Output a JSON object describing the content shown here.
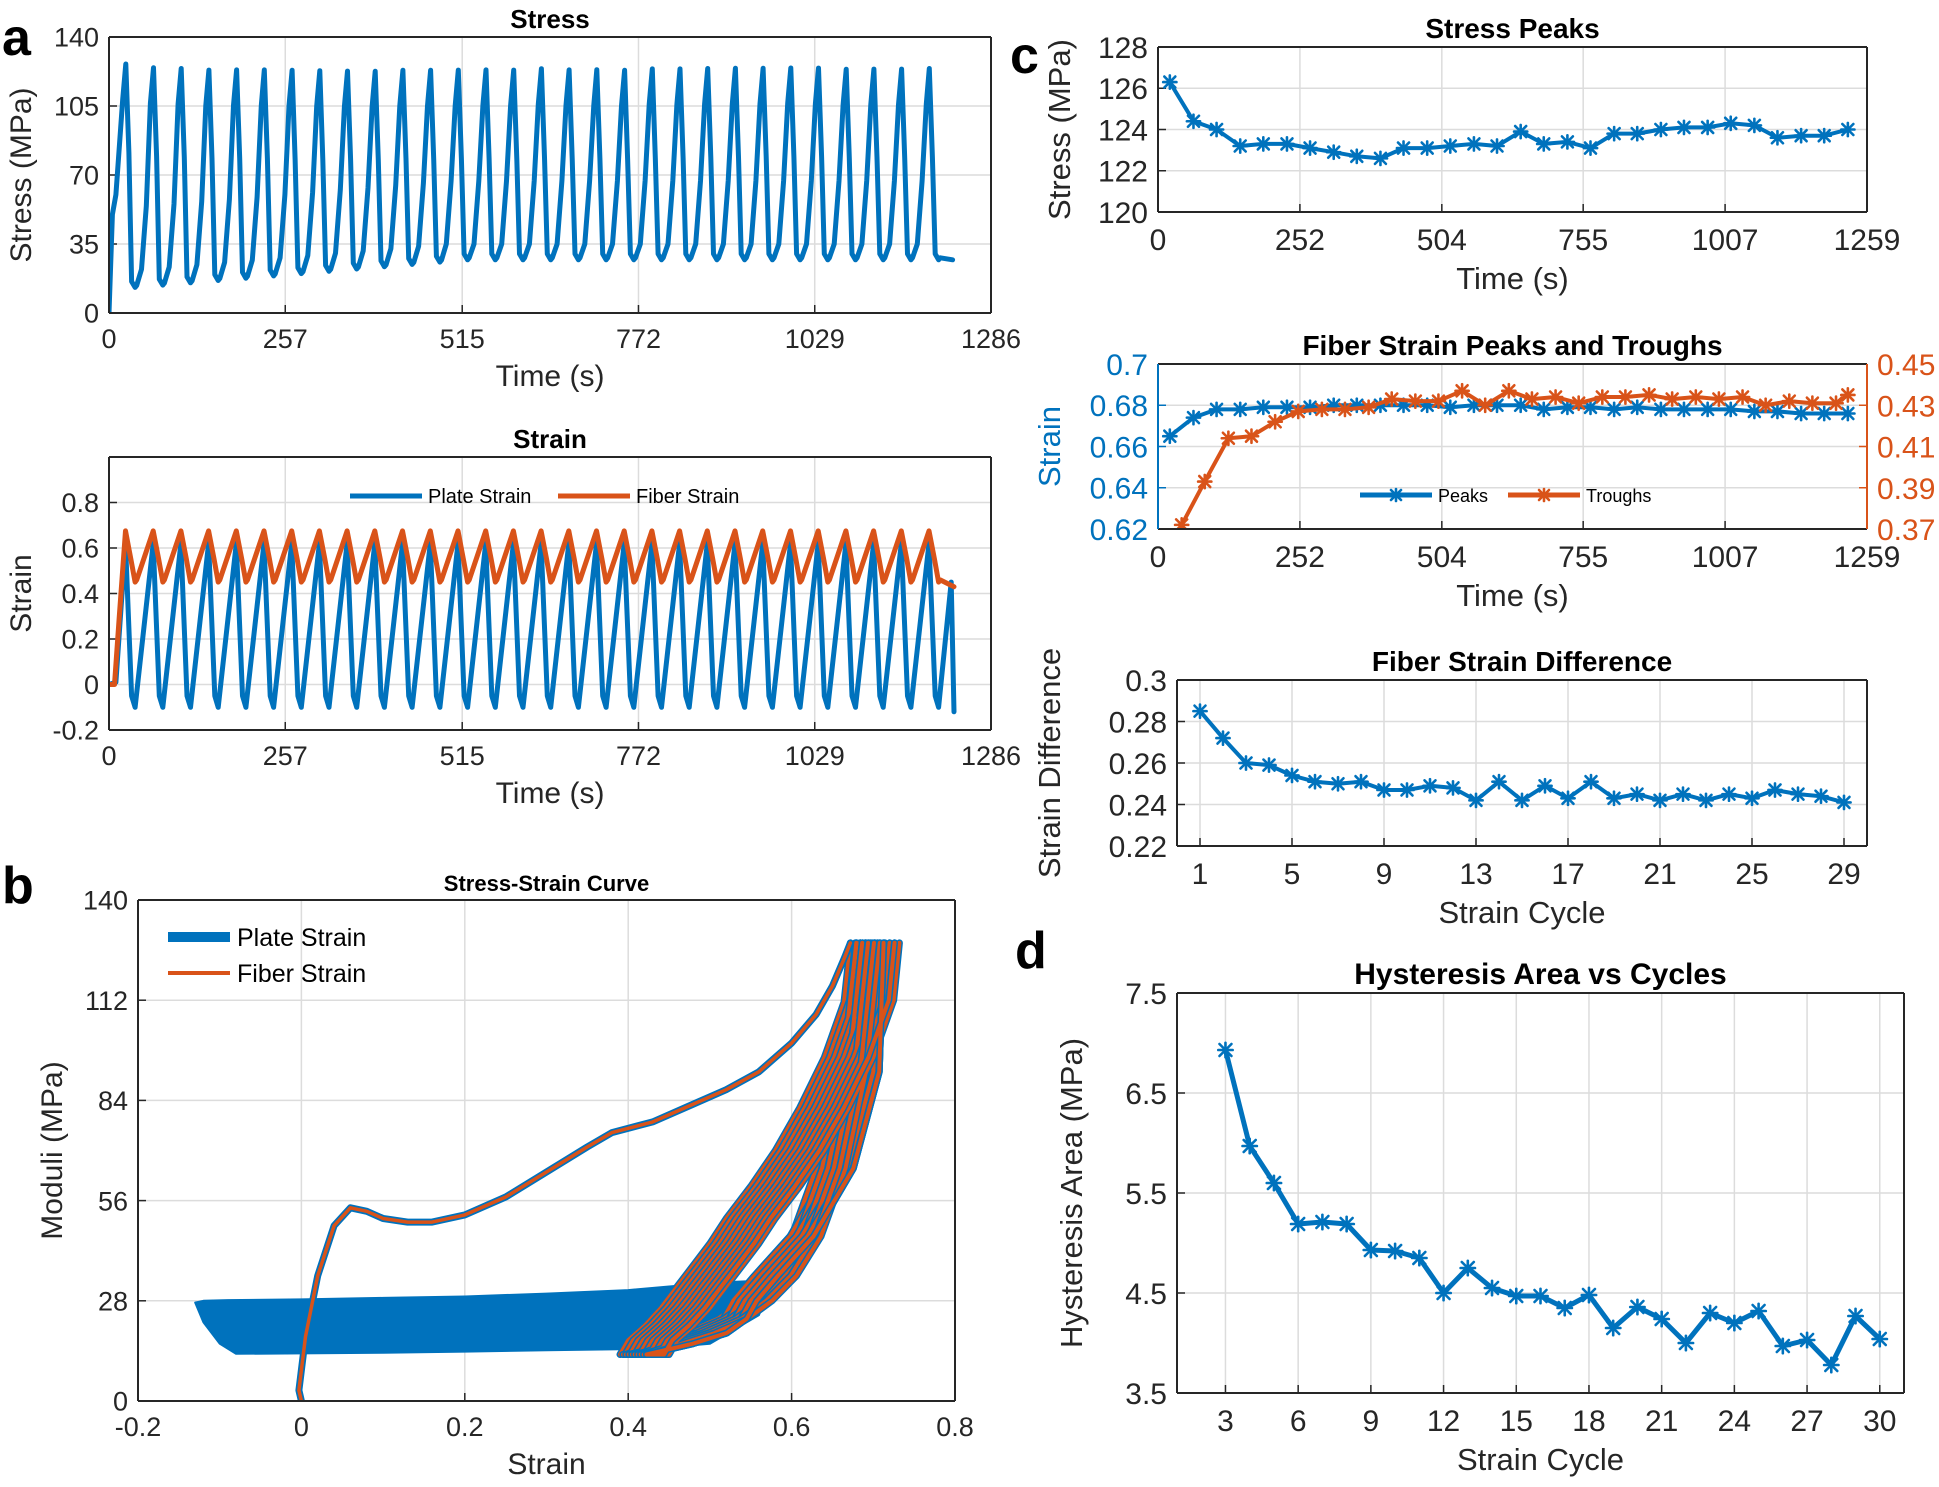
{
  "panel_letters": {
    "a": "a",
    "b": "b",
    "c": "c",
    "d": "d"
  },
  "colors": {
    "blue": "#0072BD",
    "orange": "#D95319",
    "grid": "#dcdcdc",
    "axis": "#262626"
  },
  "chart_data": [
    {
      "id": "stress",
      "type": "line",
      "title": "Stress",
      "xlabel": "Time (s)",
      "ylabel": "Stress (MPa)",
      "xlim": [
        0,
        1286
      ],
      "ylim": [
        0,
        140
      ],
      "xticks": [
        0,
        257,
        515,
        772,
        1029,
        1286
      ],
      "yticks": [
        0,
        35,
        70,
        105,
        140
      ],
      "grid": true,
      "cycle": {
        "period_s": 40.4,
        "cycles": 30,
        "peak_values": [
          126.3,
          124.4,
          124.0,
          123.2,
          123.3,
          123.3,
          123.1,
          122.9,
          122.7,
          122.6,
          123.1,
          123.1,
          123.2,
          123.3,
          123.2,
          123.9,
          123.3,
          123.4,
          123.1,
          123.8,
          123.8,
          124.0,
          124.1,
          124.1,
          124.3,
          124.2,
          123.6,
          123.7,
          123.7,
          124.0
        ],
        "trough_first": 13,
        "trough_last": 27,
        "end_time": 1230,
        "end_value": 27
      },
      "series": [
        {
          "name": "",
          "color": "#0072BD"
        }
      ]
    },
    {
      "id": "strain",
      "type": "line",
      "title": "Strain",
      "xlabel": "Time (s)",
      "ylabel": "Strain",
      "xlim": [
        0,
        1286
      ],
      "ylim": [
        -0.2,
        1.0
      ],
      "xticks": [
        0,
        257,
        515,
        772,
        1029,
        1286
      ],
      "xtick_labels": [
        "0",
        "257",
        "515",
        "772",
        "1029",
        "1286"
      ],
      "yticks": [
        -0.2,
        0,
        0.2,
        0.4,
        0.6,
        0.8
      ],
      "ytick_labels": [
        "-0.2",
        "0",
        "0.2",
        "0.4",
        "0.6",
        "0.8"
      ],
      "grid": true,
      "legend": "top-center",
      "series": [
        {
          "name": "Plate Strain",
          "color": "#0072BD",
          "peak": 0.62,
          "trough": -0.1,
          "end_value": -0.12
        },
        {
          "name": "Fiber Strain",
          "color": "#D95319",
          "peak": 0.675,
          "trough": 0.45,
          "end_value": 0.43
        }
      ]
    },
    {
      "id": "stress-strain",
      "type": "line",
      "title": "Stress-Strain Curve",
      "xlabel": "Strain",
      "ylabel": "Moduli (MPa)",
      "xlim": [
        -0.2,
        0.8
      ],
      "ylim": [
        0,
        140
      ],
      "xticks": [
        -0.2,
        0,
        0.2,
        0.4,
        0.6,
        0.8
      ],
      "xtick_labels": [
        "-0.2",
        "0",
        "0.2",
        "0.4",
        "0.6",
        "0.8"
      ],
      "yticks": [
        0,
        28,
        56,
        84,
        112,
        140
      ],
      "ytick_labels": [
        "0",
        "28",
        "56",
        "84",
        "112",
        "140"
      ],
      "grid": true,
      "legend": "top-left",
      "series": [
        {
          "name": "Plate Strain",
          "color": "#0072BD",
          "band_x": [
            -0.13,
            -0.12,
            -0.09,
            0.0,
            0.1,
            0.2,
            0.3,
            0.4,
            0.45,
            0.5,
            0.55,
            0.58,
            0.56,
            0.5,
            0.45,
            0.4,
            0.3,
            0.2,
            0.1,
            0.0,
            -0.08,
            -0.1,
            -0.12
          ],
          "band_y": [
            27.5,
            28.0,
            28.2,
            28.4,
            28.8,
            29.2,
            30.0,
            31.0,
            32.0,
            33.0,
            33.5,
            35.0,
            24.0,
            16.0,
            15.0,
            14.5,
            14.2,
            13.8,
            13.5,
            13.3,
            13.2,
            16.0,
            22.0
          ]
        },
        {
          "name": "Fiber Strain",
          "color": "#D95319",
          "first_x": [
            0.0,
            -0.003,
            0.005,
            0.02,
            0.04,
            0.06,
            0.08,
            0.1,
            0.13,
            0.16,
            0.2,
            0.25,
            0.3,
            0.35,
            0.38,
            0.43,
            0.48,
            0.52,
            0.56,
            0.6,
            0.63,
            0.65,
            0.665,
            0.672
          ],
          "first_y": [
            0.0,
            3.0,
            18.0,
            35.0,
            49.0,
            54.0,
            53.0,
            51.0,
            50.0,
            50.0,
            52.0,
            57.0,
            64.0,
            71.0,
            75.0,
            78.0,
            83.0,
            87.0,
            92.0,
            100.0,
            108.0,
            116.0,
            124.0,
            128.0
          ],
          "unload_x": [
            0.672,
            0.665,
            0.64,
            0.61,
            0.58,
            0.55,
            0.52,
            0.5,
            0.48,
            0.46,
            0.44,
            0.42,
            0.4,
            0.39
          ],
          "unload_y": [
            128.0,
            112.0,
            96.0,
            82.0,
            70.0,
            60.0,
            51.0,
            44.0,
            38.0,
            32.0,
            26.0,
            21.0,
            17.0,
            13.0
          ],
          "reload_x": [
            0.39,
            0.43,
            0.47,
            0.51,
            0.54,
            0.57,
            0.6,
            0.63,
            0.655,
            0.672
          ],
          "reload_y": [
            13.0,
            16.0,
            19.0,
            23.0,
            28.0,
            35.0,
            46.0,
            65.0,
            92.0,
            128.0
          ]
        }
      ]
    },
    {
      "id": "stress-peaks",
      "type": "line",
      "title": "Stress Peaks",
      "xlabel": "Time (s)",
      "ylabel": "Stress (MPa)",
      "xlim": [
        0,
        1259
      ],
      "ylim": [
        120,
        128
      ],
      "xticks": [
        0,
        252,
        504,
        755,
        1007,
        1259
      ],
      "yticks": [
        120,
        122,
        124,
        126,
        128
      ],
      "grid": true,
      "x": [
        21,
        63,
        104,
        146,
        187,
        229,
        270,
        312,
        353,
        395,
        436,
        478,
        519,
        561,
        602,
        644,
        685,
        727,
        768,
        810,
        851,
        893,
        934,
        976,
        1017,
        1059,
        1100,
        1142,
        1183,
        1225
      ],
      "series": [
        {
          "name": "",
          "color": "#0072BD",
          "values": [
            126.3,
            124.4,
            124.0,
            123.2,
            123.3,
            123.3,
            123.1,
            122.9,
            122.7,
            122.6,
            123.1,
            123.1,
            123.2,
            123.3,
            123.2,
            123.9,
            123.3,
            123.4,
            123.1,
            123.8,
            123.8,
            124.0,
            124.1,
            124.1,
            124.3,
            124.2,
            123.6,
            123.7,
            123.7,
            124.0
          ]
        }
      ]
    },
    {
      "id": "fiber-peaks-troughs",
      "type": "line",
      "title": "Fiber Strain Peaks and Troughs",
      "xlabel": "Time (s)",
      "ylabel": "Strain",
      "xlim": [
        0,
        1259
      ],
      "ylim": [
        0.62,
        0.7
      ],
      "y2lim": [
        0.37,
        0.45
      ],
      "xticks": [
        0,
        252,
        504,
        755,
        1007,
        1259
      ],
      "yticks": [
        0.62,
        0.64,
        0.66,
        0.68,
        0.7
      ],
      "ytick_labels": [
        "0.62",
        "0.64",
        "0.66",
        "0.68",
        "0.7"
      ],
      "y2ticks": [
        0.37,
        0.39,
        0.41,
        0.43,
        0.45
      ],
      "y2tick_labels": [
        "0.37",
        "0.39",
        "0.41",
        "0.43",
        "0.45"
      ],
      "grid": true,
      "legend": "bottom-center",
      "series": [
        {
          "name": "Peaks",
          "color": "#0072BD",
          "axis": "left",
          "x": [
            21,
            63,
            104,
            146,
            187,
            229,
            270,
            312,
            353,
            395,
            436,
            478,
            519,
            561,
            602,
            644,
            685,
            727,
            768,
            810,
            851,
            893,
            934,
            976,
            1017,
            1059,
            1100,
            1142,
            1183,
            1225
          ],
          "values": [
            0.665,
            0.674,
            0.678,
            0.678,
            0.679,
            0.679,
            0.679,
            0.68,
            0.68,
            0.68,
            0.68,
            0.68,
            0.679,
            0.68,
            0.68,
            0.68,
            0.678,
            0.679,
            0.679,
            0.678,
            0.679,
            0.678,
            0.678,
            0.678,
            0.678,
            0.677,
            0.677,
            0.676,
            0.676,
            0.676
          ]
        },
        {
          "name": "Troughs",
          "color": "#D95319",
          "axis": "right",
          "x": [
            42,
            83,
            125,
            166,
            208,
            249,
            291,
            332,
            374,
            415,
            457,
            498,
            540,
            581,
            623,
            664,
            706,
            747,
            789,
            830,
            872,
            913,
            955,
            996,
            1038,
            1079,
            1121,
            1162,
            1204,
            1225
          ],
          "values": [
            0.372,
            0.393,
            0.414,
            0.415,
            0.422,
            0.427,
            0.428,
            0.428,
            0.429,
            0.433,
            0.432,
            0.432,
            0.437,
            0.43,
            0.437,
            0.433,
            0.434,
            0.431,
            0.434,
            0.434,
            0.435,
            0.433,
            0.434,
            0.433,
            0.434,
            0.43,
            0.432,
            0.431,
            0.431,
            0.435
          ]
        }
      ]
    },
    {
      "id": "fiber-strain-difference",
      "type": "line",
      "title": "Fiber Strain Difference",
      "xlabel": "Strain Cycle",
      "ylabel": "Strain Difference",
      "xlim": [
        0,
        30
      ],
      "ylim": [
        0.22,
        0.3
      ],
      "xticks": [
        1,
        5,
        9,
        13,
        17,
        21,
        25,
        29
      ],
      "yticks": [
        0.22,
        0.24,
        0.26,
        0.28,
        0.3
      ],
      "ytick_labels": [
        "0.22",
        "0.24",
        "0.26",
        "0.28",
        "0.3"
      ],
      "grid": true,
      "x": [
        1,
        2,
        3,
        4,
        5,
        6,
        7,
        8,
        9,
        10,
        11,
        12,
        13,
        14,
        15,
        16,
        17,
        18,
        19,
        20,
        21,
        22,
        23,
        24,
        25,
        26,
        27,
        28,
        29
      ],
      "series": [
        {
          "name": "",
          "color": "#0072BD",
          "values": [
            0.285,
            0.272,
            0.26,
            0.259,
            0.254,
            0.251,
            0.25,
            0.251,
            0.247,
            0.247,
            0.249,
            0.248,
            0.242,
            0.251,
            0.242,
            0.249,
            0.243,
            0.251,
            0.243,
            0.245,
            0.242,
            0.245,
            0.242,
            0.245,
            0.243,
            0.247,
            0.245,
            0.244,
            0.241
          ]
        }
      ]
    },
    {
      "id": "hysteresis-area",
      "type": "line",
      "title": "Hysteresis Area vs Cycles",
      "xlabel": "Strain Cycle",
      "ylabel": "Hysteresis Area (MPa)",
      "xlim": [
        1,
        31
      ],
      "ylim": [
        3.5,
        7.5
      ],
      "xticks": [
        3,
        6,
        9,
        12,
        15,
        18,
        21,
        24,
        27,
        30
      ],
      "yticks": [
        3.5,
        4.5,
        5.5,
        6.5,
        7.5
      ],
      "ytick_labels": [
        "3.5",
        "4.5",
        "5.5",
        "6.5",
        "7.5"
      ],
      "grid": true,
      "x": [
        3,
        4,
        5,
        6,
        7,
        8,
        9,
        10,
        11,
        12,
        13,
        14,
        15,
        16,
        17,
        18,
        19,
        20,
        21,
        22,
        23,
        24,
        25,
        26,
        27,
        28,
        29,
        30
      ],
      "series": [
        {
          "name": "",
          "color": "#0072BD",
          "values": [
            6.93,
            5.97,
            5.6,
            5.19,
            5.21,
            5.19,
            4.93,
            4.92,
            4.85,
            4.5,
            4.75,
            4.55,
            4.47,
            4.47,
            4.35,
            4.48,
            4.15,
            4.36,
            4.24,
            4.0,
            4.3,
            4.2,
            4.32,
            3.97,
            4.03,
            3.78,
            4.27,
            4.04
          ]
        }
      ]
    }
  ]
}
